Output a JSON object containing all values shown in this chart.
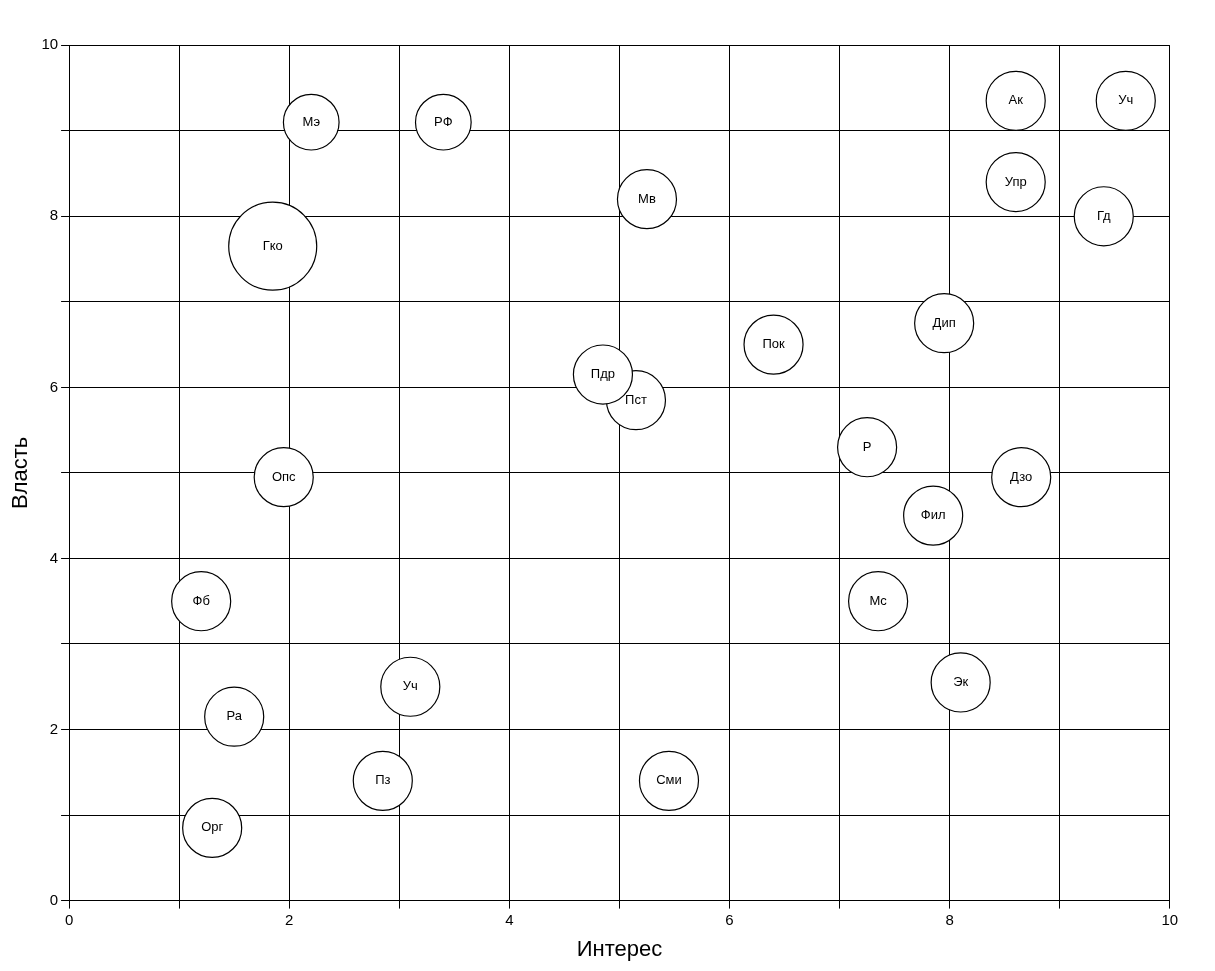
{
  "chart_data": {
    "type": "bubble",
    "xlabel": "Интерес",
    "ylabel": "Власть",
    "xlim": [
      0,
      10
    ],
    "ylim": [
      0,
      10
    ],
    "xticks": [
      0,
      {
        "value": 1,
        "label": null
      },
      2,
      {
        "value": 3,
        "label": null
      },
      4,
      {
        "value": 5,
        "label": null
      },
      6,
      {
        "value": 7,
        "label": null
      },
      8,
      {
        "value": 9,
        "label": null
      },
      10
    ],
    "yticks": [
      0,
      {
        "value": 1,
        "label": null
      },
      2,
      {
        "value": 3,
        "label": null
      },
      4,
      {
        "value": 5,
        "label": null
      },
      6,
      {
        "value": 7,
        "label": null
      },
      8,
      {
        "value": 9,
        "label": null
      },
      10
    ],
    "grid": true,
    "legend": false,
    "series": [
      {
        "name": "Мэ",
        "color": "#ffffff",
        "x": [
          2.2
        ],
        "values": [
          9.1
        ],
        "sizes": [
          0.4
        ]
      },
      {
        "name": "РФ",
        "color": "#ffffff",
        "x": [
          3.4
        ],
        "values": [
          9.1
        ],
        "sizes": [
          0.4
        ]
      },
      {
        "name": "Ак",
        "color": "#ffffff",
        "x": [
          8.6
        ],
        "values": [
          9.35
        ],
        "sizes": [
          0.45
        ]
      },
      {
        "name": "Уч",
        "color": "#ffffff",
        "x": [
          9.6
        ],
        "values": [
          9.35
        ],
        "sizes": [
          0.45
        ]
      },
      {
        "name": "Упр",
        "color": "#ffffff",
        "x": [
          8.6
        ],
        "values": [
          8.4
        ],
        "sizes": [
          0.45
        ]
      },
      {
        "name": "Гд",
        "color": "#ffffff",
        "x": [
          9.4
        ],
        "values": [
          8.0
        ],
        "sizes": [
          0.45
        ]
      },
      {
        "name": "Мв",
        "color": "#ffffff",
        "x": [
          5.25
        ],
        "values": [
          8.2
        ],
        "sizes": [
          0.45
        ]
      },
      {
        "name": "Гко",
        "color": "#ffffff",
        "x": [
          1.85
        ],
        "values": [
          7.65
        ],
        "sizes": [
          1
        ]
      },
      {
        "name": "Дип",
        "color": "#ffffff",
        "x": [
          7.95
        ],
        "values": [
          6.75
        ],
        "sizes": [
          0.45
        ]
      },
      {
        "name": "Пок",
        "color": "#ffffff",
        "x": [
          6.4
        ],
        "values": [
          6.5
        ],
        "sizes": [
          0.45
        ]
      },
      {
        "name": "Пдр",
        "color": "#ffffff",
        "x": [
          4.85
        ],
        "values": [
          6.15
        ],
        "sizes": [
          0.45
        ]
      },
      {
        "name": "Пст",
        "color": "#ffffff",
        "x": [
          5.15
        ],
        "values": [
          5.85
        ],
        "sizes": [
          0.45
        ]
      },
      {
        "name": "Р",
        "color": "#ffffff",
        "x": [
          7.25
        ],
        "values": [
          5.3
        ],
        "sizes": [
          0.45
        ]
      },
      {
        "name": "Опс",
        "color": "#ffffff",
        "x": [
          1.95
        ],
        "values": [
          4.95
        ],
        "sizes": [
          0.45
        ]
      },
      {
        "name": "Дзо",
        "color": "#ffffff",
        "x": [
          8.65
        ],
        "values": [
          4.95
        ],
        "sizes": [
          0.45
        ]
      },
      {
        "name": "Фил",
        "color": "#ffffff",
        "x": [
          7.85
        ],
        "values": [
          4.5
        ],
        "sizes": [
          0.45
        ]
      },
      {
        "name": "Фб",
        "color": "#ffffff",
        "x": [
          1.2
        ],
        "values": [
          3.5
        ],
        "sizes": [
          0.45
        ]
      },
      {
        "name": "Мс",
        "color": "#ffffff",
        "x": [
          7.35
        ],
        "values": [
          3.5
        ],
        "sizes": [
          0.45
        ]
      },
      {
        "name": "Уч",
        "color": "#ffffff",
        "x": [
          3.1
        ],
        "values": [
          2.5
        ],
        "sizes": [
          0.45
        ]
      },
      {
        "name": "Эк",
        "color": "#ffffff",
        "x": [
          8.1
        ],
        "values": [
          2.55
        ],
        "sizes": [
          0.45
        ]
      },
      {
        "name": "Ра",
        "color": "#ffffff",
        "x": [
          1.5
        ],
        "values": [
          2.15
        ],
        "sizes": [
          0.45
        ]
      },
      {
        "name": "Пз",
        "color": "#ffffff",
        "x": [
          2.85
        ],
        "values": [
          1.4
        ],
        "sizes": [
          0.45
        ]
      },
      {
        "name": "Сми",
        "color": "#ffffff",
        "x": [
          5.45
        ],
        "values": [
          1.4
        ],
        "sizes": [
          0.45
        ]
      },
      {
        "name": "Орг",
        "color": "#ffffff",
        "x": [
          1.3
        ],
        "values": [
          0.85
        ],
        "sizes": [
          0.45
        ]
      }
    ]
  }
}
